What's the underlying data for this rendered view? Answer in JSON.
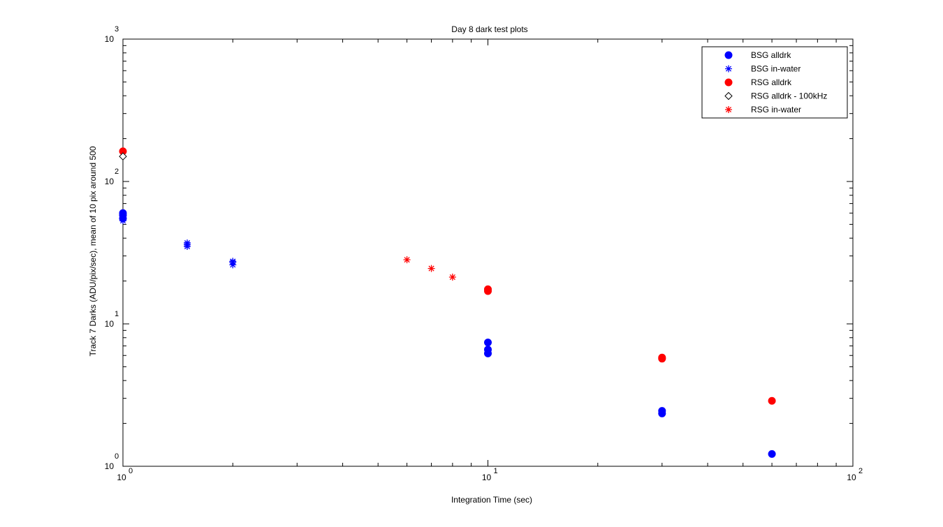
{
  "chart_data": {
    "type": "scatter",
    "title": "Day 8 dark test plots",
    "xlabel": "Integration Time (sec)",
    "ylabel": "Track 7 Darks (ADU/pix/sec), mean of 10 pix around 500",
    "xscale": "log",
    "yscale": "log",
    "xlim": [
      1,
      100
    ],
    "ylim": [
      1,
      1000
    ],
    "grid": false,
    "legend_position": "top-right",
    "x_ticks": [
      {
        "base": "10",
        "exp": "0"
      },
      {
        "base": "10",
        "exp": "1"
      },
      {
        "base": "10",
        "exp": "2"
      }
    ],
    "y_ticks": [
      {
        "base": "10",
        "exp": "0"
      },
      {
        "base": "10",
        "exp": "1"
      },
      {
        "base": "10",
        "exp": "2"
      },
      {
        "base": "10",
        "exp": "3"
      }
    ],
    "series": [
      {
        "name": "BSG alldrk",
        "marker": "circle",
        "color": "#0000ff",
        "points": [
          [
            1,
            58
          ],
          [
            1,
            55
          ],
          [
            1,
            60
          ],
          [
            10,
            7.4
          ],
          [
            10,
            6.6
          ],
          [
            10,
            6.2
          ],
          [
            30,
            2.45
          ],
          [
            30,
            2.35
          ],
          [
            60,
            1.22
          ]
        ]
      },
      {
        "name": "BSG in-water",
        "marker": "asterisk",
        "color": "#0000ff",
        "points": [
          [
            1,
            53
          ],
          [
            1.5,
            36
          ],
          [
            1.5,
            35
          ],
          [
            1.5,
            37
          ],
          [
            2,
            27
          ],
          [
            2,
            26
          ],
          [
            2,
            27.5
          ]
        ]
      },
      {
        "name": "RSG alldrk",
        "marker": "circle",
        "color": "#ff0000",
        "points": [
          [
            1,
            163
          ],
          [
            10,
            17.5
          ],
          [
            10,
            17
          ],
          [
            30,
            5.8
          ],
          [
            30,
            5.7
          ],
          [
            60,
            2.88
          ]
        ]
      },
      {
        "name": "RSG alldrk - 100kHz",
        "marker": "diamond",
        "color": "#000000",
        "points": [
          [
            1,
            150
          ]
        ]
      },
      {
        "name": "RSG in-water",
        "marker": "asterisk",
        "color": "#ff0000",
        "points": [
          [
            6,
            28.2
          ],
          [
            7,
            24.5
          ],
          [
            8,
            21.3
          ]
        ]
      }
    ]
  }
}
